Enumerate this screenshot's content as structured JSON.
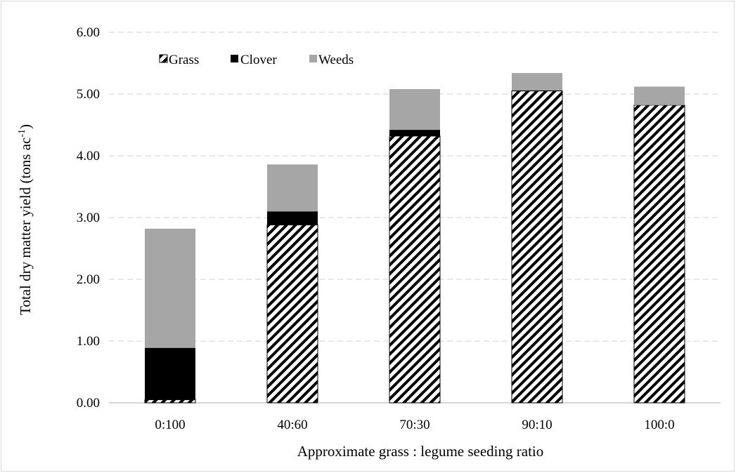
{
  "chart_data": {
    "type": "bar",
    "stacked": true,
    "categories": [
      "0:100",
      "40:60",
      "70:30",
      "90:10",
      "100:0"
    ],
    "series": [
      {
        "name": "Grass",
        "values": [
          0.05,
          2.88,
          4.32,
          5.05,
          4.82
        ],
        "color": "#000000",
        "fill": "diagonal-hatch"
      },
      {
        "name": "Clover",
        "values": [
          0.84,
          0.22,
          0.1,
          0.01,
          0.0
        ],
        "color": "#000000",
        "fill": "solid"
      },
      {
        "name": "Weeds",
        "values": [
          1.93,
          0.76,
          0.66,
          0.28,
          0.3
        ],
        "color": "#a6a6a6",
        "fill": "solid"
      }
    ],
    "xlabel": "Approximate grass : legume seeding ratio",
    "ylabel_main": "Total dry matter yield (tons ac",
    "ylabel_sup": "-1",
    "ylabel_end": ")",
    "ylim": [
      0,
      6
    ],
    "yticks": [
      "0.00",
      "1.00",
      "2.00",
      "3.00",
      "4.00",
      "5.00",
      "6.00"
    ],
    "grid": true,
    "legend_position": "top-left"
  }
}
